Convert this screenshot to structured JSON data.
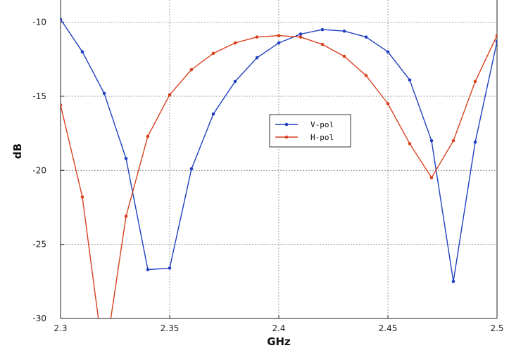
{
  "chart_data": {
    "type": "line",
    "title": "",
    "xlabel": "GHz",
    "ylabel": "dB",
    "xlim": [
      2.3,
      2.5
    ],
    "ylim": [
      -30,
      -8.5
    ],
    "x_ticks": [
      "2.3",
      "2.35",
      "2.4",
      "2.45",
      "2.5"
    ],
    "x_tick_values": [
      2.3,
      2.35,
      2.4,
      2.45,
      2.5
    ],
    "y_ticks": [
      "-10",
      "-15",
      "-20",
      "-25",
      "-30"
    ],
    "y_tick_values": [
      -10,
      -15,
      -20,
      -25,
      -30
    ],
    "grid": true,
    "legend_position": "center",
    "x": [
      2.3,
      2.31,
      2.32,
      2.33,
      2.34,
      2.35,
      2.36,
      2.37,
      2.38,
      2.39,
      2.4,
      2.41,
      2.42,
      2.43,
      2.44,
      2.45,
      2.46,
      2.47,
      2.48,
      2.49,
      2.5
    ],
    "series": [
      {
        "name": "V-pol",
        "color": "#1f3fbf",
        "values": [
          -9.8,
          -12.0,
          -14.8,
          -19.2,
          -26.7,
          -26.6,
          -19.9,
          -16.2,
          -14.0,
          -12.4,
          -11.4,
          -10.8,
          -10.5,
          -10.6,
          -11.0,
          -12.0,
          -13.9,
          -18.0,
          -27.5,
          -18.1,
          -11.3
        ]
      },
      {
        "name": "H-pol",
        "color": "#d8401e",
        "values": [
          -15.6,
          -21.8,
          -33.0,
          -23.1,
          -17.7,
          -14.9,
          -13.2,
          -12.1,
          -11.4,
          -11.0,
          -10.9,
          -11.0,
          -11.5,
          -12.3,
          -13.6,
          -15.5,
          -18.2,
          -20.5,
          -18.0,
          -14.0,
          -10.9
        ]
      }
    ]
  }
}
